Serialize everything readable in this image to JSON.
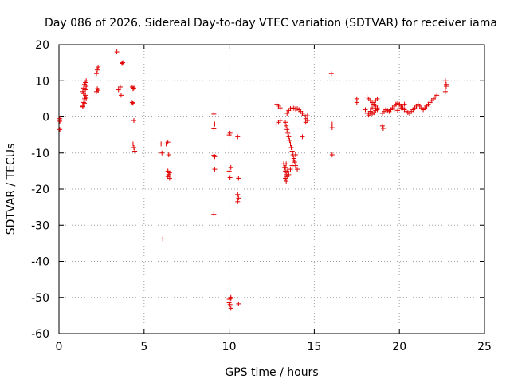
{
  "chart_data": {
    "type": "scatter",
    "title": "Day 086 of 2026, Sidereal Day-to-day VTEC variation (SDTVAR) for receiver iama",
    "xlabel": "GPS time / hours",
    "ylabel": "SDTVAR / TECUs",
    "xlim": [
      0,
      25
    ],
    "ylim": [
      -60,
      20
    ],
    "xticks": [
      "0",
      "5",
      "10",
      "15",
      "20",
      "25"
    ],
    "yticks": [
      "-60",
      "-50",
      "-40",
      "-30",
      "-20",
      "-10",
      "0",
      "10",
      "20"
    ],
    "grid": true,
    "marker": "+",
    "color": "#e00000",
    "series": [
      {
        "name": "SDTVAR",
        "x": [
          0.05,
          0.05,
          0.05,
          1.4,
          1.45,
          1.5,
          1.55,
          1.4,
          1.45,
          1.5,
          1.55,
          1.6,
          1.45,
          1.5,
          1.55,
          1.6,
          1.4,
          1.5,
          1.6,
          2.2,
          2.25,
          2.3,
          2.2,
          2.25,
          2.3,
          3.4,
          3.5,
          3.6,
          3.65,
          3.7,
          3.75,
          4.3,
          4.35,
          4.4,
          4.3,
          4.35,
          4.4,
          4.35,
          4.4,
          4.45,
          6.0,
          6.05,
          6.1,
          6.3,
          6.4,
          6.45,
          6.4,
          6.45,
          6.5,
          6.5,
          6.4,
          9.1,
          9.15,
          9.1,
          9.15,
          9.1,
          9.15,
          9.1,
          10.0,
          10.05,
          10.1,
          10.0,
          10.05,
          10.1,
          10.0,
          10.05,
          10.1,
          10.0,
          10.1,
          10.5,
          10.55,
          10.5,
          10.55,
          10.5,
          10.55,
          12.8,
          12.9,
          13.0,
          12.8,
          12.9,
          13.0,
          13.2,
          13.3,
          13.4,
          13.5,
          13.6,
          13.7,
          13.8,
          13.9,
          13.3,
          13.35,
          13.4,
          13.45,
          13.5,
          13.55,
          13.6,
          13.65,
          13.7,
          13.75,
          13.8,
          13.85,
          13.9,
          14.0,
          13.4,
          13.5,
          13.6,
          13.7,
          13.8,
          13.9,
          14.0,
          14.1,
          14.2,
          14.3,
          14.4,
          14.5,
          14.6,
          14.5,
          14.3,
          14.6,
          13.35,
          13.3,
          13.35,
          13.4,
          13.3,
          13.25,
          13.35,
          16.0,
          16.05,
          16.05,
          16.05,
          17.5,
          17.5,
          18.0,
          18.1,
          18.2,
          18.3,
          18.4,
          18.5,
          18.6,
          18.7,
          18.1,
          18.2,
          18.3,
          18.4,
          18.5,
          18.6,
          18.7,
          18.2,
          18.3,
          18.4,
          18.5,
          18.6,
          18.7,
          19.0,
          19.1,
          19.2,
          19.3,
          19.4,
          19.5,
          19.6,
          19.7,
          19.8,
          19.9,
          20.0,
          20.1,
          20.2,
          20.3,
          20.4,
          20.5,
          20.6,
          20.7,
          20.8,
          20.9,
          21.0,
          21.1,
          21.2,
          21.3,
          21.4,
          21.5,
          21.6,
          21.7,
          21.8,
          21.9,
          22.0,
          22.1,
          22.2,
          19.5,
          19.7,
          19.9,
          20.1,
          20.3,
          19.0,
          19.05,
          22.7,
          22.75,
          22.7,
          22.75
        ],
        "y": [
          -0.5,
          -1.2,
          -3.5,
          3.0,
          4.0,
          5.0,
          6.0,
          7.0,
          8.0,
          9.0,
          9.5,
          10.0,
          6.5,
          5.5,
          7.5,
          8.5,
          2.8,
          3.8,
          5.2,
          12.0,
          13.0,
          13.8,
          7.0,
          7.8,
          7.4,
          18.0,
          7.5,
          8.3,
          6.0,
          14.8,
          15.0,
          8.3,
          7.8,
          8.0,
          4.0,
          3.8,
          -1.0,
          -7.5,
          -8.5,
          -9.5,
          -7.5,
          -10.0,
          -33.8,
          -7.5,
          -7.0,
          -10.5,
          -15.0,
          -16.0,
          -17.0,
          -15.5,
          -16.5,
          0.8,
          -2.0,
          -3.3,
          -11.0,
          -10.6,
          -14.5,
          -27.0,
          -5.0,
          -4.5,
          -14.0,
          -15.0,
          -16.8,
          -50.0,
          -50.5,
          -52.0,
          -53.0,
          -51.5,
          -50.3,
          -5.5,
          -17.0,
          -21.5,
          -22.5,
          -23.5,
          -51.8,
          3.5,
          3.0,
          2.5,
          -2.0,
          -1.5,
          -1.0,
          -13.0,
          -14.0,
          -15.0,
          -16.0,
          -14.5,
          -13.5,
          -12.0,
          -10.5,
          -1.5,
          -2.5,
          -3.5,
          -4.5,
          -5.5,
          -6.5,
          -7.5,
          -8.5,
          -9.5,
          -10.5,
          -11.5,
          -12.5,
          -13.5,
          -14.5,
          1.0,
          1.8,
          2.3,
          2.5,
          2.4,
          2.2,
          2.3,
          2.0,
          1.5,
          1.0,
          0.5,
          -0.5,
          -1.0,
          -1.5,
          -5.5,
          0.3,
          -16.0,
          -17.0,
          -17.8,
          -16.5,
          -15.0,
          -14.0,
          -13.0,
          12.0,
          -2.0,
          -3.0,
          -10.5,
          5.0,
          4.0,
          2.0,
          1.0,
          0.5,
          1.5,
          2.5,
          3.5,
          4.5,
          5.0,
          5.5,
          5.0,
          4.5,
          4.0,
          3.5,
          3.0,
          2.5,
          1.0,
          1.5,
          0.8,
          1.2,
          1.8,
          2.0,
          1.0,
          1.5,
          2.0,
          1.8,
          1.5,
          2.0,
          2.5,
          3.0,
          3.5,
          3.8,
          3.5,
          3.0,
          2.5,
          2.0,
          1.5,
          1.2,
          1.0,
          1.5,
          2.0,
          2.5,
          3.0,
          3.5,
          3.0,
          2.5,
          2.0,
          2.5,
          3.0,
          3.5,
          4.0,
          4.5,
          5.0,
          5.5,
          6.0,
          2.0,
          2.2,
          1.8,
          2.5,
          3.5,
          -2.5,
          -3.2,
          10.0,
          8.5,
          7.0,
          9.0
        ]
      }
    ]
  }
}
